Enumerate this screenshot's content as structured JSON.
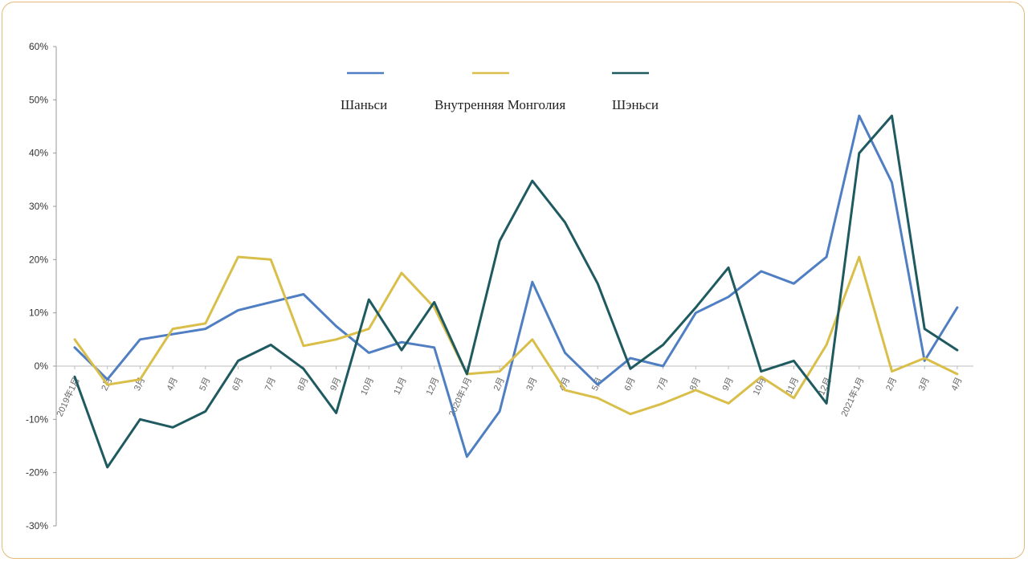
{
  "chart_data": {
    "type": "line",
    "title": "",
    "xlabel": "",
    "ylabel": "",
    "ylim": [
      -30,
      60
    ],
    "yticks": [
      "60%",
      "50%",
      "40%",
      "30%",
      "20%",
      "10%",
      "0%",
      "-10%",
      "-20%",
      "-30%"
    ],
    "ytick_values": [
      60,
      50,
      40,
      30,
      20,
      10,
      0,
      -10,
      -20,
      -30
    ],
    "grid": false,
    "legend_position": "top",
    "categories": [
      "2019年1月",
      "2月",
      "3月",
      "4月",
      "5月",
      "6月",
      "7月",
      "8月",
      "9月",
      "10月",
      "11月",
      "12月",
      "2020年1月",
      "2月",
      "3月",
      "4月",
      "5月",
      "6月",
      "7月",
      "8月",
      "9月",
      "10月",
      "11月",
      "12月",
      "2021年1月",
      "2月",
      "3月",
      "4月"
    ],
    "series": [
      {
        "name": "Шаньси",
        "color": "#4f7fc2",
        "values": [
          3.5,
          -2.5,
          5,
          6,
          7,
          10.5,
          12,
          13.5,
          7.5,
          2.5,
          4.5,
          3.5,
          -17,
          -8.5,
          15.8,
          2.5,
          -3.5,
          1.5,
          0,
          10,
          13,
          17.8,
          15.5,
          20.5,
          47,
          34.5,
          1,
          11
        ]
      },
      {
        "name": "Внутренняя Монголия",
        "color": "#d9bf4a",
        "values": [
          5,
          -3.5,
          -2.5,
          7,
          8,
          20.5,
          20,
          3.8,
          5,
          7,
          17.5,
          11,
          -1.5,
          -1,
          5,
          -4.5,
          -6,
          -9,
          -7,
          -4.5,
          -7,
          -2,
          -6,
          4,
          20.5,
          -1,
          1.5,
          -1.5
        ]
      },
      {
        "name": "Шэньси",
        "color": "#1f5a60",
        "values": [
          -2,
          -19,
          -10,
          -11.5,
          -8.5,
          1,
          4,
          -0.5,
          -8.8,
          12.5,
          3,
          12,
          -1.5,
          23.5,
          34.8,
          27,
          15.5,
          -0.5,
          4,
          11,
          18.5,
          -1,
          1,
          -7,
          40,
          47,
          7,
          3
        ]
      }
    ]
  }
}
